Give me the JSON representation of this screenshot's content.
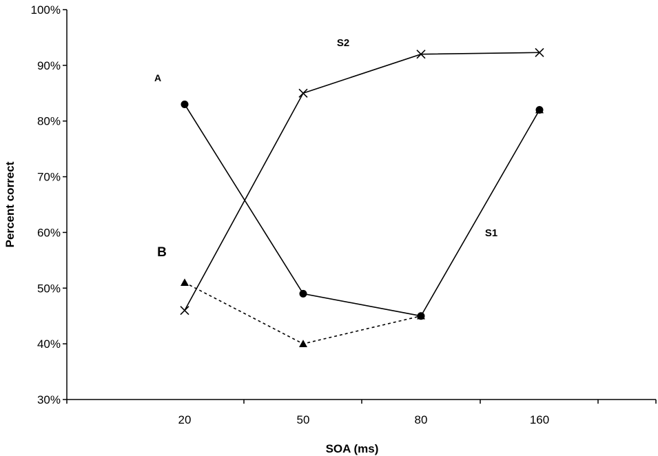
{
  "chart_data": {
    "type": "line",
    "title": "",
    "xlabel": "SOA (ms)",
    "ylabel": "Percent correct",
    "categories": [
      "20",
      "50",
      "80",
      "160"
    ],
    "ylim": [
      30,
      100
    ],
    "y_ticks": [
      30,
      40,
      50,
      60,
      70,
      80,
      90,
      100
    ],
    "y_tick_labels": [
      "30%",
      "40%",
      "50%",
      "60%",
      "70%",
      "80%",
      "90%",
      "100%"
    ],
    "grid": false,
    "legend": "none",
    "series": [
      {
        "name": "S2",
        "marker": "x",
        "line": "solid",
        "values": [
          46,
          85,
          92,
          92.3
        ]
      },
      {
        "name": "S1",
        "marker": "circle",
        "line": "solid",
        "values": [
          83,
          49,
          45,
          82
        ]
      },
      {
        "marker": "triangle",
        "line": "dotted",
        "values": [
          51,
          40,
          45,
          82
        ]
      }
    ],
    "annotations": [
      {
        "text": "S2"
      },
      {
        "text": "S1"
      },
      {
        "text": "A"
      },
      {
        "text": "B"
      }
    ]
  }
}
